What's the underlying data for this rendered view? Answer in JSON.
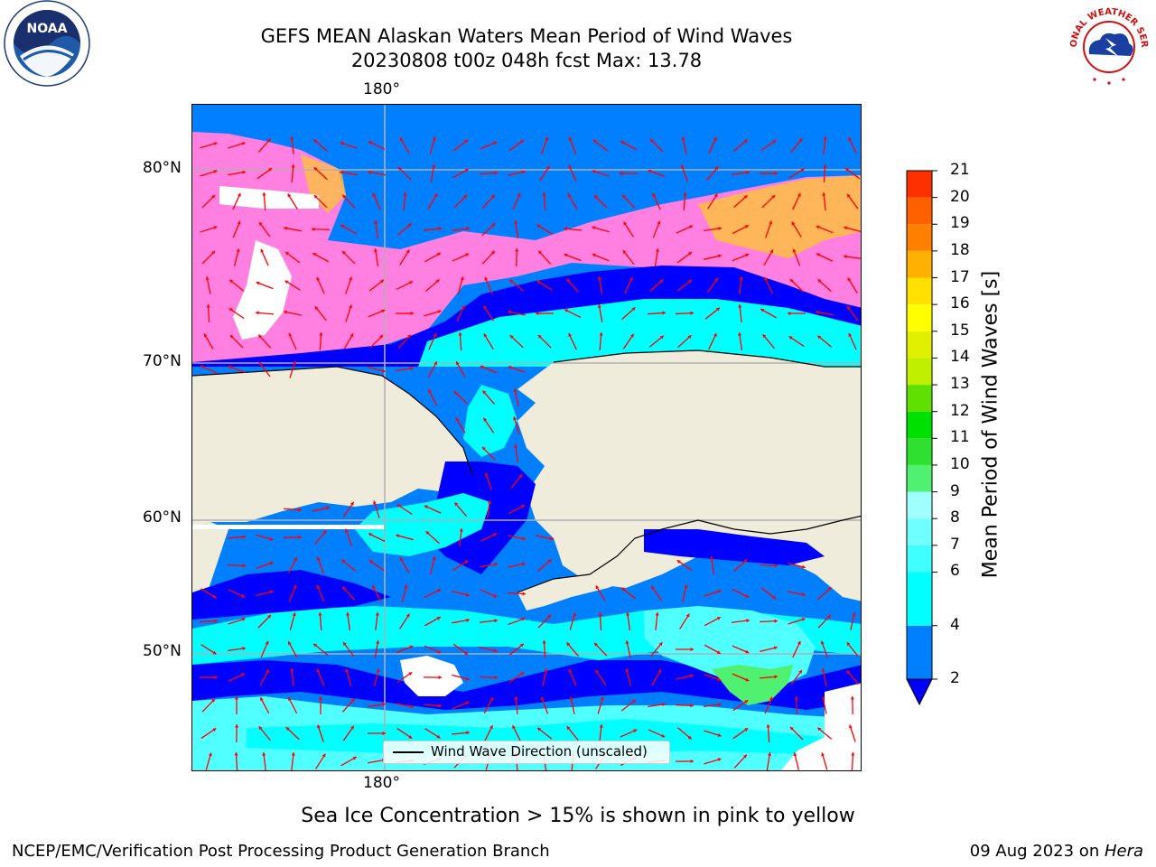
{
  "title": {
    "line1": "GEFS MEAN Alaskan Waters Mean Period of Wind Waves",
    "line2": "20230808 t00z 048h fcst   Max: 13.78"
  },
  "map": {
    "lon_label_top": "180°",
    "lon_label_bottom": "180°",
    "lat_labels": [
      "80°N",
      "70°N",
      "60°N",
      "50°N"
    ],
    "colors": {
      "land": "#efecdc",
      "wave_2_4": "#0000ff",
      "wave_4_6": "#0080ff",
      "wave_6_8": "#00ffff",
      "wave_8_10": "#50ffff",
      "ice_pink": "#ff80e0",
      "ice_yellow": "#ffc040",
      "arrow": "#ff0000"
    }
  },
  "legend": {
    "label": "Wind Wave Direction (unscaled)"
  },
  "colorbar": {
    "title": "Mean Period of Wind Waves [s]",
    "ticks": [
      "2",
      "4",
      "6",
      "7",
      "8",
      "9",
      "10",
      "11",
      "12",
      "13",
      "14",
      "15",
      "16",
      "17",
      "18",
      "19",
      "20",
      "21"
    ],
    "tick_values": [
      2,
      4,
      6,
      7,
      8,
      9,
      10,
      11,
      12,
      13,
      14,
      15,
      16,
      17,
      18,
      19,
      20,
      21
    ],
    "colors": [
      "#0080ff",
      "#00ffff",
      "#40ffff",
      "#70ffff",
      "#a0ffff",
      "#50f070",
      "#30e030",
      "#00e000",
      "#60e000",
      "#c0f000",
      "#e0f000",
      "#ffff00",
      "#ffe000",
      "#ffb000",
      "#ff8000",
      "#ff6000",
      "#ff3000",
      "#ff0000"
    ]
  },
  "caption": "Sea Ice Concentration > 15% is shown in pink to yellow",
  "footer": {
    "left": "NCEP/EMC/Verification Post Processing Product Generation Branch",
    "right_date": "09 Aug 2023 on ",
    "right_host": "Hera"
  },
  "logos": {
    "noaa_text": "NOAA",
    "nws_text": "NATIONAL WEATHER SERVICE"
  }
}
